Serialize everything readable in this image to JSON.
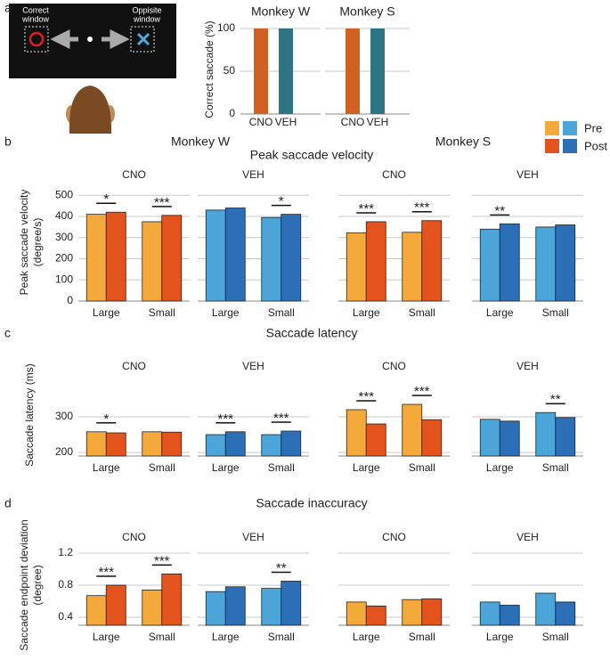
{
  "figure": {
    "panel_labels": [
      "a",
      "b",
      "c",
      "d"
    ],
    "headers": [
      "Monkey W",
      "Monkey S"
    ],
    "row_titles": [
      "Peak saccade velocity",
      "Saccade latency",
      "Saccade inaccuracy"
    ],
    "ylabels": [
      [
        "Peak saccade velocity",
        "(degree/s)"
      ],
      [
        "Saccade latency (ms)"
      ],
      [
        "Saccade endpoint deviation",
        "(degree)"
      ]
    ]
  },
  "schematic": {
    "left": [
      "Correct",
      "window"
    ],
    "right": [
      "Oppisite",
      "window"
    ]
  },
  "chart_data": [
    {
      "type": "bar",
      "title": "Monkey W",
      "ylabel": "Correct saccade (%)",
      "categories": [
        "CNO",
        "VEH"
      ],
      "values": [
        100,
        100
      ],
      "colors": [
        "#cf6124",
        "#2f7483"
      ],
      "ylim": [
        0,
        100
      ],
      "yticks": [
        0,
        50,
        100
      ],
      "tick_labels": true,
      "grid": true
    },
    {
      "type": "bar",
      "title": "Monkey S",
      "categories": [
        "CNO",
        "VEH"
      ],
      "values": [
        100,
        100
      ],
      "colors": [
        "#cf6124",
        "#2f7483"
      ],
      "ylim": [
        0,
        100
      ],
      "yticks": [
        0,
        50,
        100
      ],
      "tick_labels": false,
      "grid": true
    },
    {
      "type": "bar",
      "title": "CNO",
      "categories": [
        "Large",
        "Small"
      ],
      "series": [
        {
          "name": "Pre",
          "color": "#f4a93b",
          "values": [
            410,
            375
          ]
        },
        {
          "name": "Post",
          "color": "#e2531d",
          "values": [
            420,
            405
          ]
        }
      ],
      "ylim": [
        0,
        560
      ],
      "yticks": [
        0,
        100,
        200,
        300,
        400,
        500
      ],
      "tick_labels": true,
      "grid": true,
      "annotations": [
        {
          "category": 0,
          "text": "*"
        },
        {
          "category": 1,
          "text": "***"
        }
      ]
    },
    {
      "type": "bar",
      "title": "VEH",
      "categories": [
        "Large",
        "Small"
      ],
      "series": [
        {
          "name": "Pre",
          "color": "#4ca5d9",
          "values": [
            430,
            395
          ]
        },
        {
          "name": "Post",
          "color": "#2c6fb6",
          "values": [
            440,
            410
          ]
        }
      ],
      "ylim": [
        0,
        560
      ],
      "yticks": [
        0,
        100,
        200,
        300,
        400,
        500
      ],
      "tick_labels": false,
      "grid": true,
      "annotations": [
        {
          "category": 1,
          "text": "*"
        }
      ]
    },
    {
      "type": "bar",
      "title": "CNO",
      "categories": [
        "Large",
        "Small"
      ],
      "series": [
        {
          "name": "Pre",
          "color": "#f4a93b",
          "values": [
            322,
            325
          ]
        },
        {
          "name": "Post",
          "color": "#e2531d",
          "values": [
            375,
            380
          ]
        }
      ],
      "ylim": [
        0,
        560
      ],
      "yticks": [
        0,
        100,
        200,
        300,
        400,
        500
      ],
      "tick_labels": false,
      "grid": true,
      "annotations": [
        {
          "category": 0,
          "text": "***"
        },
        {
          "category": 1,
          "text": "***"
        }
      ]
    },
    {
      "type": "bar",
      "title": "VEH",
      "categories": [
        "Large",
        "Small"
      ],
      "series": [
        {
          "name": "Pre",
          "color": "#4ca5d9",
          "values": [
            340,
            350
          ]
        },
        {
          "name": "Post",
          "color": "#2c6fb6",
          "values": [
            365,
            360
          ]
        }
      ],
      "ylim": [
        0,
        560
      ],
      "yticks": [
        0,
        100,
        200,
        300,
        400,
        500
      ],
      "tick_labels": false,
      "grid": true,
      "annotations": [
        {
          "category": 0,
          "text": "**"
        }
      ]
    },
    {
      "type": "bar",
      "title": "CNO",
      "categories": [
        "Large",
        "Small"
      ],
      "series": [
        {
          "name": "Pre",
          "color": "#f4a93b",
          "values": [
            258,
            258
          ]
        },
        {
          "name": "Post",
          "color": "#e2531d",
          "values": [
            255,
            257
          ]
        }
      ],
      "ylim": [
        190,
        420
      ],
      "yticks": [
        200,
        300
      ],
      "tick_labels": true,
      "grid": true,
      "annotations": [
        {
          "category": 0,
          "text": "*"
        }
      ]
    },
    {
      "type": "bar",
      "title": "VEH",
      "categories": [
        "Large",
        "Small"
      ],
      "series": [
        {
          "name": "Pre",
          "color": "#4ca5d9",
          "values": [
            250,
            250
          ]
        },
        {
          "name": "Post",
          "color": "#2c6fb6",
          "values": [
            258,
            260
          ]
        }
      ],
      "ylim": [
        190,
        420
      ],
      "yticks": [
        200,
        300
      ],
      "tick_labels": false,
      "grid": true,
      "annotations": [
        {
          "category": 0,
          "text": "***"
        },
        {
          "category": 1,
          "text": "***"
        }
      ]
    },
    {
      "type": "bar",
      "title": "CNO",
      "categories": [
        "Large",
        "Small"
      ],
      "series": [
        {
          "name": "Pre",
          "color": "#f4a93b",
          "values": [
            320,
            335
          ]
        },
        {
          "name": "Post",
          "color": "#e2531d",
          "values": [
            280,
            292
          ]
        }
      ],
      "ylim": [
        190,
        420
      ],
      "yticks": [
        200,
        300
      ],
      "tick_labels": false,
      "grid": true,
      "annotations": [
        {
          "category": 0,
          "text": "***"
        },
        {
          "category": 1,
          "text": "***"
        }
      ]
    },
    {
      "type": "bar",
      "title": "VEH",
      "categories": [
        "Large",
        "Small"
      ],
      "series": [
        {
          "name": "Pre",
          "color": "#4ca5d9",
          "values": [
            293,
            312
          ]
        },
        {
          "name": "Post",
          "color": "#2c6fb6",
          "values": [
            288,
            298
          ]
        }
      ],
      "ylim": [
        190,
        420
      ],
      "yticks": [
        200,
        300
      ],
      "tick_labels": false,
      "grid": true,
      "annotations": [
        {
          "category": 1,
          "text": "**"
        }
      ]
    },
    {
      "type": "bar",
      "title": "CNO",
      "categories": [
        "Large",
        "Small"
      ],
      "series": [
        {
          "name": "Pre",
          "color": "#f4a93b",
          "values": [
            0.67,
            0.74
          ]
        },
        {
          "name": "Post",
          "color": "#e2531d",
          "values": [
            0.8,
            0.94
          ]
        }
      ],
      "ylim": [
        0.3,
        1.3
      ],
      "yticks": [
        0.4,
        0.8,
        1.2
      ],
      "tick_labels": true,
      "grid": true,
      "annotations": [
        {
          "category": 0,
          "text": "***"
        },
        {
          "category": 1,
          "text": "***"
        }
      ]
    },
    {
      "type": "bar",
      "title": "VEH",
      "categories": [
        "Large",
        "Small"
      ],
      "series": [
        {
          "name": "Pre",
          "color": "#4ca5d9",
          "values": [
            0.72,
            0.76
          ]
        },
        {
          "name": "Post",
          "color": "#2c6fb6",
          "values": [
            0.78,
            0.85
          ]
        }
      ],
      "ylim": [
        0.3,
        1.3
      ],
      "yticks": [
        0.4,
        0.8,
        1.2
      ],
      "tick_labels": false,
      "grid": true,
      "annotations": [
        {
          "category": 1,
          "text": "**"
        }
      ]
    },
    {
      "type": "bar",
      "title": "CNO",
      "categories": [
        "Large",
        "Small"
      ],
      "series": [
        {
          "name": "Pre",
          "color": "#f4a93b",
          "values": [
            0.59,
            0.62
          ]
        },
        {
          "name": "Post",
          "color": "#e2531d",
          "values": [
            0.54,
            0.63
          ]
        }
      ],
      "ylim": [
        0.3,
        1.3
      ],
      "yticks": [
        0.4,
        0.8,
        1.2
      ],
      "tick_labels": false,
      "grid": true
    },
    {
      "type": "bar",
      "title": "VEH",
      "categories": [
        "Large",
        "Small"
      ],
      "series": [
        {
          "name": "Pre",
          "color": "#4ca5d9",
          "values": [
            0.59,
            0.7
          ]
        },
        {
          "name": "Post",
          "color": "#2c6fb6",
          "values": [
            0.55,
            0.59
          ]
        }
      ],
      "ylim": [
        0.3,
        1.3
      ],
      "yticks": [
        0.4,
        0.8,
        1.2
      ],
      "tick_labels": false,
      "grid": true
    }
  ]
}
